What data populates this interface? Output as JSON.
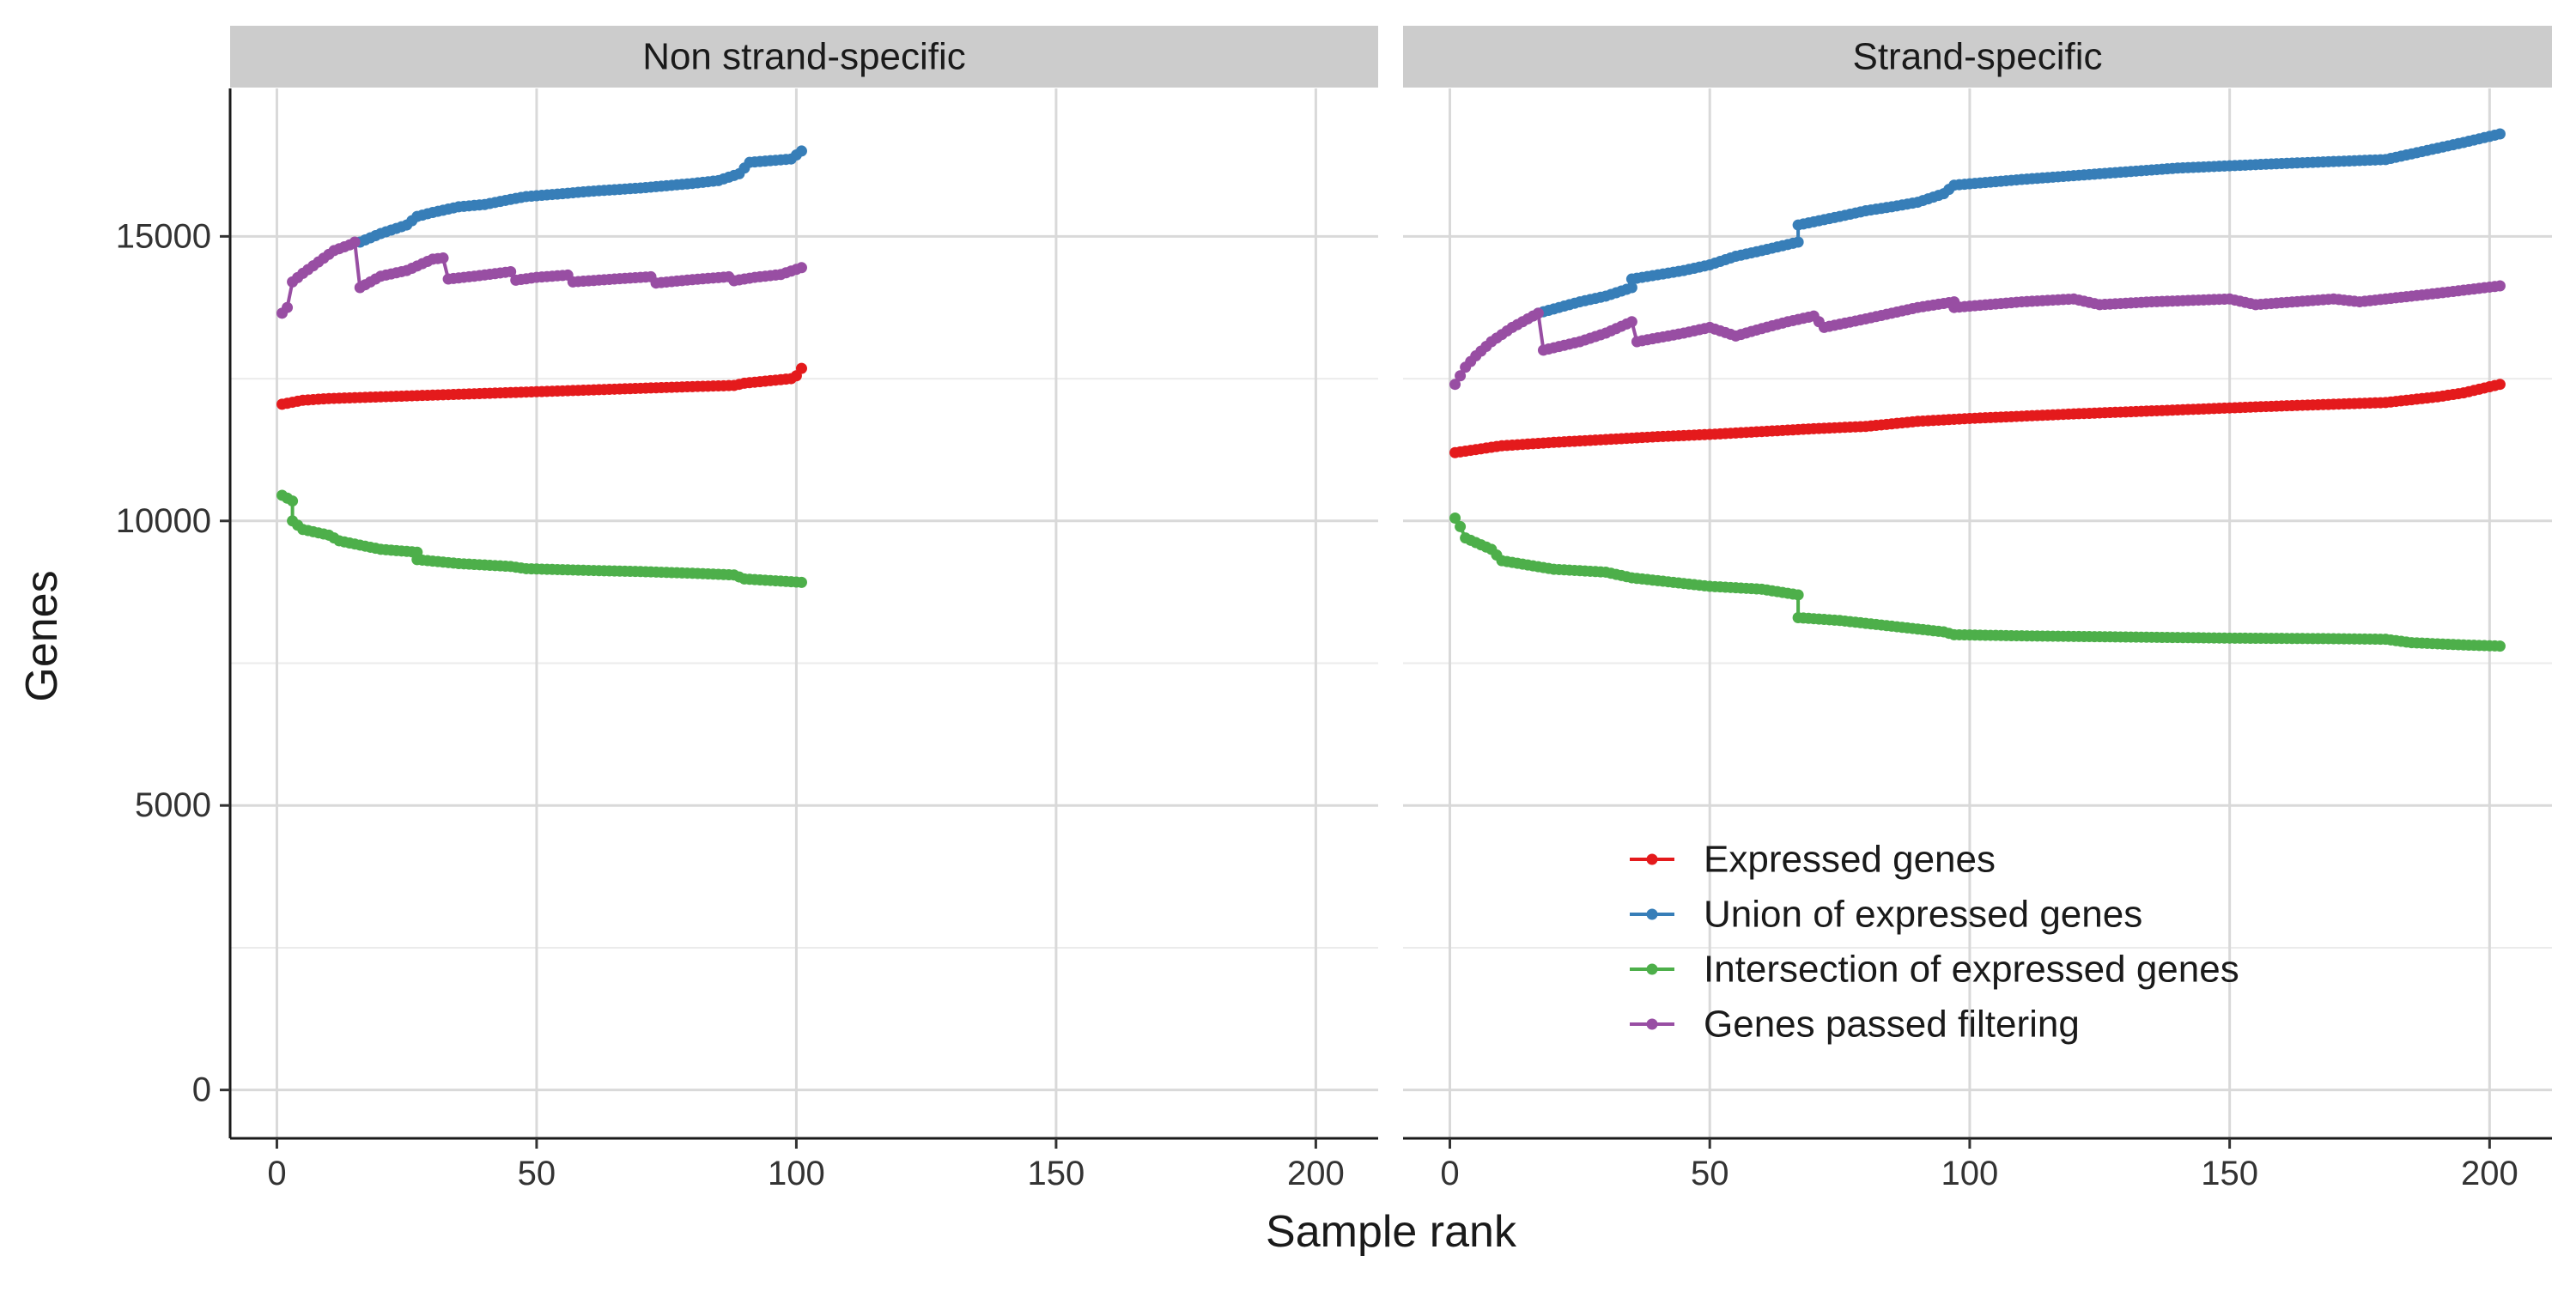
{
  "chart_data": {
    "type": "line",
    "xlabel": "Sample rank",
    "ylabel": "Genes",
    "xlim": [
      -9,
      212
    ],
    "ylim": [
      -850,
      17600
    ],
    "x_ticks": [
      0,
      50,
      100,
      150,
      200
    ],
    "x_tick_labels": [
      "0",
      "50",
      "100",
      "150",
      "200"
    ],
    "y_ticks": [
      0,
      5000,
      10000,
      15000
    ],
    "y_tick_labels": [
      "0",
      "5000",
      "10000",
      "15000"
    ],
    "y_minor_ticks": [
      2500,
      7500,
      12500
    ],
    "grid": true,
    "legend_position": "inside bottom-center of right panel",
    "legend": [
      {
        "name": "Expressed genes",
        "color": "#E41A1C"
      },
      {
        "name": "Union of expressed genes",
        "color": "#377EB8"
      },
      {
        "name": "Intersection of expressed genes",
        "color": "#4DAF4A"
      },
      {
        "name": "Genes passed filtering",
        "color": "#984EA3"
      }
    ],
    "panels": [
      {
        "strip": "Non strand-specific",
        "series": [
          {
            "name": "Expressed genes",
            "color": "#E41A1C",
            "points": [
              [
                1,
                12050
              ],
              [
                5,
                12120
              ],
              [
                10,
                12150
              ],
              [
                20,
                12180
              ],
              [
                30,
                12210
              ],
              [
                40,
                12240
              ],
              [
                50,
                12270
              ],
              [
                60,
                12300
              ],
              [
                70,
                12330
              ],
              [
                80,
                12360
              ],
              [
                88,
                12380
              ],
              [
                90,
                12420
              ],
              [
                99,
                12500
              ],
              [
                100,
                12550
              ],
              [
                101,
                12680
              ]
            ]
          },
          {
            "name": "Union of expressed genes",
            "color": "#377EB8",
            "points": [
              [
                16,
                14900
              ],
              [
                20,
                15050
              ],
              [
                25,
                15200
              ],
              [
                27,
                15350
              ],
              [
                30,
                15420
              ],
              [
                35,
                15520
              ],
              [
                40,
                15560
              ],
              [
                45,
                15650
              ],
              [
                48,
                15700
              ],
              [
                55,
                15750
              ],
              [
                60,
                15790
              ],
              [
                70,
                15850
              ],
              [
                80,
                15930
              ],
              [
                85,
                15980
              ],
              [
                89,
                16100
              ],
              [
                91,
                16300
              ],
              [
                99,
                16360
              ],
              [
                101,
                16500
              ]
            ]
          },
          {
            "name": "Intersection of expressed genes",
            "color": "#4DAF4A",
            "points": [
              [
                1,
                10450
              ],
              [
                3,
                10350
              ],
              [
                3,
                10000
              ],
              [
                5,
                9850
              ],
              [
                10,
                9750
              ],
              [
                12,
                9650
              ],
              [
                20,
                9500
              ],
              [
                27,
                9450
              ],
              [
                27,
                9320
              ],
              [
                35,
                9250
              ],
              [
                45,
                9200
              ],
              [
                48,
                9160
              ],
              [
                60,
                9130
              ],
              [
                70,
                9110
              ],
              [
                80,
                9080
              ],
              [
                88,
                9050
              ],
              [
                90,
                8980
              ],
              [
                101,
                8920
              ]
            ]
          },
          {
            "name": "Genes passed filtering",
            "color": "#984EA3",
            "points": [
              [
                1,
                13650
              ],
              [
                2,
                13750
              ],
              [
                3,
                14200
              ],
              [
                5,
                14350
              ],
              [
                8,
                14550
              ],
              [
                11,
                14750
              ],
              [
                14,
                14850
              ],
              [
                15,
                14900
              ],
              [
                16,
                14100
              ],
              [
                18,
                14200
              ],
              [
                20,
                14300
              ],
              [
                25,
                14400
              ],
              [
                28,
                14520
              ],
              [
                30,
                14600
              ],
              [
                32,
                14620
              ],
              [
                33,
                14250
              ],
              [
                38,
                14300
              ],
              [
                45,
                14380
              ],
              [
                46,
                14230
              ],
              [
                50,
                14280
              ],
              [
                56,
                14320
              ],
              [
                57,
                14200
              ],
              [
                65,
                14250
              ],
              [
                72,
                14290
              ],
              [
                73,
                14180
              ],
              [
                80,
                14240
              ],
              [
                87,
                14290
              ],
              [
                88,
                14220
              ],
              [
                92,
                14280
              ],
              [
                97,
                14330
              ],
              [
                98,
                14360
              ],
              [
                101,
                14450
              ]
            ]
          }
        ]
      },
      {
        "strip": "Strand-specific",
        "series": [
          {
            "name": "Expressed genes",
            "color": "#E41A1C",
            "points": [
              [
                1,
                11200
              ],
              [
                10,
                11320
              ],
              [
                20,
                11380
              ],
              [
                30,
                11430
              ],
              [
                40,
                11480
              ],
              [
                50,
                11520
              ],
              [
                60,
                11570
              ],
              [
                70,
                11620
              ],
              [
                80,
                11660
              ],
              [
                90,
                11750
              ],
              [
                100,
                11800
              ],
              [
                120,
                11880
              ],
              [
                140,
                11950
              ],
              [
                160,
                12020
              ],
              [
                180,
                12080
              ],
              [
                190,
                12180
              ],
              [
                195,
                12250
              ],
              [
                202,
                12400
              ]
            ]
          },
          {
            "name": "Union of expressed genes",
            "color": "#377EB8",
            "points": [
              [
                17,
                13650
              ],
              [
                25,
                13850
              ],
              [
                30,
                13950
              ],
              [
                35,
                14100
              ],
              [
                35,
                14250
              ],
              [
                45,
                14400
              ],
              [
                50,
                14500
              ],
              [
                55,
                14650
              ],
              [
                60,
                14750
              ],
              [
                67,
                14900
              ],
              [
                67,
                15200
              ],
              [
                75,
                15350
              ],
              [
                80,
                15450
              ],
              [
                85,
                15520
              ],
              [
                90,
                15600
              ],
              [
                95,
                15750
              ],
              [
                97,
                15900
              ],
              [
                110,
                16000
              ],
              [
                125,
                16100
              ],
              [
                140,
                16200
              ],
              [
                160,
                16280
              ],
              [
                180,
                16350
              ],
              [
                185,
                16450
              ],
              [
                195,
                16650
              ],
              [
                202,
                16800
              ]
            ]
          },
          {
            "name": "Intersection of expressed genes",
            "color": "#4DAF4A",
            "points": [
              [
                1,
                10050
              ],
              [
                2,
                9900
              ],
              [
                3,
                9700
              ],
              [
                8,
                9500
              ],
              [
                10,
                9300
              ],
              [
                20,
                9150
              ],
              [
                30,
                9100
              ],
              [
                35,
                9000
              ],
              [
                40,
                8950
              ],
              [
                50,
                8850
              ],
              [
                60,
                8800
              ],
              [
                67,
                8700
              ],
              [
                67,
                8300
              ],
              [
                75,
                8250
              ],
              [
                80,
                8200
              ],
              [
                90,
                8100
              ],
              [
                95,
                8050
              ],
              [
                97,
                8000
              ],
              [
                110,
                7980
              ],
              [
                130,
                7960
              ],
              [
                150,
                7940
              ],
              [
                170,
                7930
              ],
              [
                180,
                7920
              ],
              [
                185,
                7860
              ],
              [
                195,
                7820
              ],
              [
                202,
                7800
              ]
            ]
          },
          {
            "name": "Genes passed filtering",
            "color": "#984EA3",
            "points": [
              [
                1,
                12400
              ],
              [
                3,
                12700
              ],
              [
                5,
                12900
              ],
              [
                8,
                13150
              ],
              [
                12,
                13400
              ],
              [
                15,
                13550
              ],
              [
                17,
                13650
              ],
              [
                18,
                13000
              ],
              [
                25,
                13150
              ],
              [
                30,
                13300
              ],
              [
                35,
                13500
              ],
              [
                36,
                13150
              ],
              [
                45,
                13300
              ],
              [
                50,
                13400
              ],
              [
                55,
                13250
              ],
              [
                60,
                13380
              ],
              [
                65,
                13500
              ],
              [
                70,
                13600
              ],
              [
                72,
                13400
              ],
              [
                80,
                13550
              ],
              [
                90,
                13750
              ],
              [
                97,
                13850
              ],
              [
                97,
                13750
              ],
              [
                110,
                13850
              ],
              [
                120,
                13900
              ],
              [
                125,
                13800
              ],
              [
                135,
                13850
              ],
              [
                150,
                13900
              ],
              [
                155,
                13800
              ],
              [
                170,
                13900
              ],
              [
                175,
                13850
              ],
              [
                180,
                13900
              ],
              [
                190,
                14000
              ],
              [
                202,
                14130
              ]
            ]
          }
        ]
      }
    ]
  }
}
